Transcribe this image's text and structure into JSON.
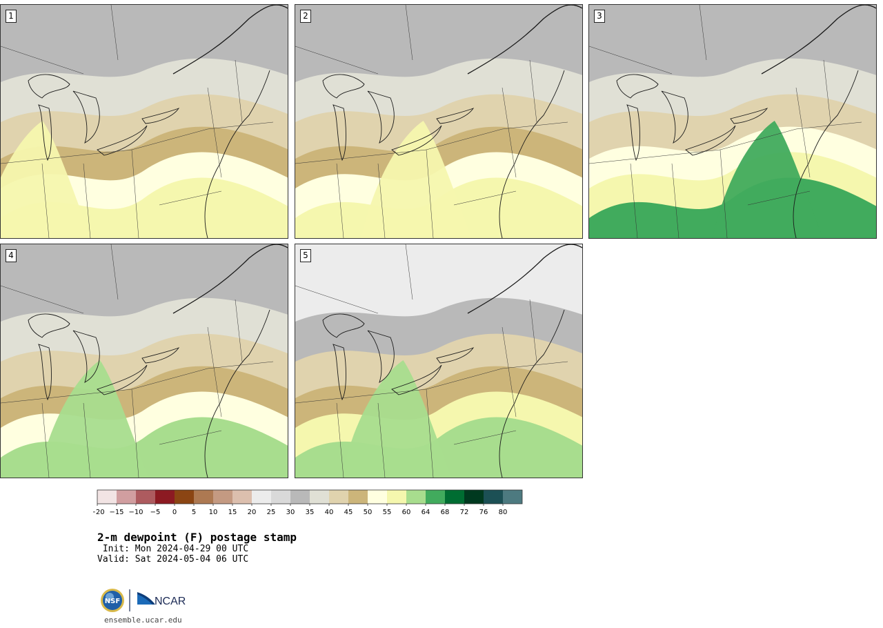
{
  "product": {
    "title": "2-m dewpoint (F) postage stamp",
    "init": " Init: Mon 2024-04-29 00 UTC",
    "valid": "Valid: Sat 2024-05-04 06 UTC",
    "website": "ensemble.ucar.edu"
  },
  "logos": {
    "nsf": "NSF",
    "ncar": "NCAR"
  },
  "members": [
    {
      "label": "1",
      "bands": [
        34,
        38,
        44,
        48,
        53,
        58
      ],
      "moist_core_x": 0.05
    },
    {
      "label": "2",
      "bands": [
        33,
        37,
        41,
        46,
        50,
        56
      ],
      "moist_core_x": 0.35
    },
    {
      "label": "3",
      "bands": [
        32,
        36,
        44,
        52,
        58,
        64
      ],
      "moist_core_x": 0.55
    },
    {
      "label": "4",
      "bands": [
        34,
        38,
        42,
        47,
        54,
        60
      ],
      "moist_core_x": 0.25
    },
    {
      "label": "5",
      "bands": [
        22,
        34,
        42,
        48,
        56,
        62
      ],
      "moist_core_x": 0.28
    }
  ],
  "colorbar": {
    "ticks": [
      "−20",
      "−15",
      "−10",
      "−5",
      "0",
      "5",
      "10",
      "15",
      "20",
      "25",
      "30",
      "35",
      "40",
      "45",
      "50",
      "55",
      "60",
      "64",
      "68",
      "72",
      "76",
      "80"
    ],
    "colors": [
      "#f2e4e4",
      "#d19ea0",
      "#ad5b5f",
      "#8c1a22",
      "#8b4513",
      "#ad7952",
      "#c49a82",
      "#dcbfae",
      "#ececec",
      "#d9d9d9",
      "#b9b9b9",
      "#e0e0d5",
      "#e0d3ae",
      "#ccb57a",
      "#ffffe0",
      "#f5f7ae",
      "#a8dd8e",
      "#41ab5d",
      "#006d32",
      "#00391f",
      "#1c5055",
      "#4d7a80"
    ]
  }
}
